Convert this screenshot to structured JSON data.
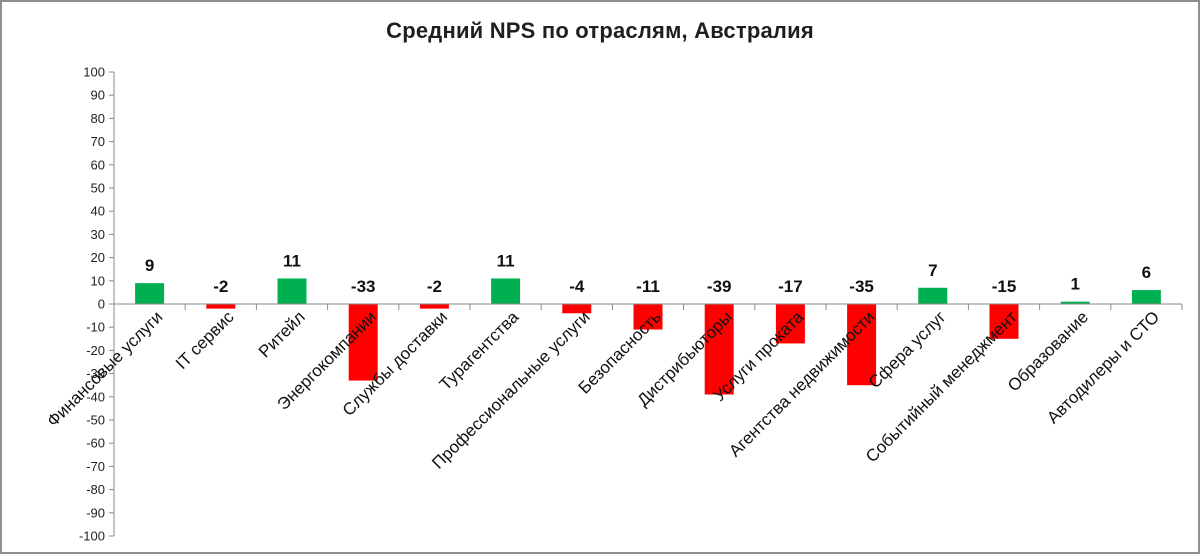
{
  "chart_data": {
    "type": "bar",
    "title": "Средний NPS по отраслям, Австралия",
    "xlabel": "",
    "ylabel": "",
    "ylim": [
      -100,
      100
    ],
    "y_ticks": [
      100,
      90,
      80,
      70,
      60,
      50,
      40,
      30,
      20,
      10,
      0,
      -10,
      -20,
      -30,
      -40,
      -50,
      -60,
      -70,
      -80,
      -90,
      -100
    ],
    "grid": false,
    "legend": "none",
    "positive_color": "#00B050",
    "negative_color": "#FF0000",
    "categories": [
      "Финансовые услуги",
      "IT сервис",
      "Ритейл",
      "Энергокомпании",
      "Службы доставки",
      "Турагентства",
      "Профессиональные услуги",
      "Безопасность",
      "Дистрибьюторы",
      "Услуги проката",
      "Агентства недвижимости",
      "Сфера услуг",
      "Событийный менеджмент",
      "Образование",
      "Автодилеры и СТО"
    ],
    "values": [
      9,
      -2,
      11,
      -33,
      -2,
      11,
      -4,
      -11,
      -39,
      -17,
      -35,
      7,
      -15,
      1,
      6
    ]
  }
}
